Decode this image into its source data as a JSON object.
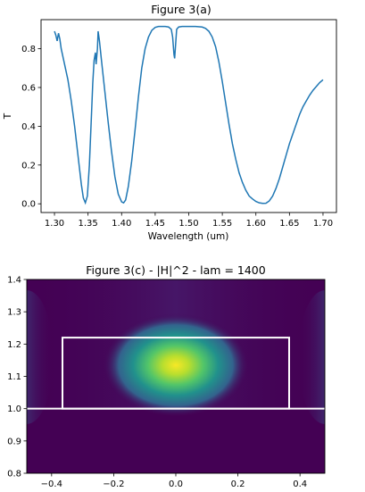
{
  "chart_data": [
    {
      "type": "line",
      "title": "Figure 3(a)",
      "xlabel": "Wavelength (um)",
      "ylabel": "T",
      "xlim": [
        1.28,
        1.72
      ],
      "ylim": [
        -0.045,
        0.95
      ],
      "x_ticks": [
        "1.30",
        "1.35",
        "1.40",
        "1.45",
        "1.50",
        "1.55",
        "1.60",
        "1.65",
        "1.70"
      ],
      "y_ticks": [
        "0.0",
        "0.2",
        "0.4",
        "0.6",
        "0.8"
      ],
      "series": [
        {
          "color": "#1f77b4",
          "points": [
            [
              1.3,
              0.89
            ],
            [
              1.302,
              0.87
            ],
            [
              1.304,
              0.84
            ],
            [
              1.306,
              0.88
            ],
            [
              1.308,
              0.85
            ],
            [
              1.31,
              0.8
            ],
            [
              1.315,
              0.72
            ],
            [
              1.32,
              0.64
            ],
            [
              1.325,
              0.53
            ],
            [
              1.33,
              0.4
            ],
            [
              1.335,
              0.25
            ],
            [
              1.34,
              0.1
            ],
            [
              1.343,
              0.03
            ],
            [
              1.346,
              0.005
            ],
            [
              1.349,
              0.04
            ],
            [
              1.352,
              0.2
            ],
            [
              1.355,
              0.45
            ],
            [
              1.357,
              0.62
            ],
            [
              1.359,
              0.74
            ],
            [
              1.361,
              0.78
            ],
            [
              1.362,
              0.72
            ],
            [
              1.364,
              0.8
            ],
            [
              1.365,
              0.89
            ],
            [
              1.367,
              0.84
            ],
            [
              1.37,
              0.74
            ],
            [
              1.375,
              0.58
            ],
            [
              1.38,
              0.42
            ],
            [
              1.385,
              0.27
            ],
            [
              1.39,
              0.14
            ],
            [
              1.395,
              0.05
            ],
            [
              1.4,
              0.01
            ],
            [
              1.403,
              0.005
            ],
            [
              1.406,
              0.02
            ],
            [
              1.41,
              0.09
            ],
            [
              1.415,
              0.22
            ],
            [
              1.42,
              0.38
            ],
            [
              1.425,
              0.55
            ],
            [
              1.43,
              0.7
            ],
            [
              1.435,
              0.8
            ],
            [
              1.44,
              0.86
            ],
            [
              1.445,
              0.895
            ],
            [
              1.45,
              0.91
            ],
            [
              1.455,
              0.915
            ],
            [
              1.46,
              0.915
            ],
            [
              1.465,
              0.915
            ],
            [
              1.47,
              0.912
            ],
            [
              1.474,
              0.9
            ],
            [
              1.476,
              0.86
            ],
            [
              1.478,
              0.77
            ],
            [
              1.479,
              0.75
            ],
            [
              1.48,
              0.8
            ],
            [
              1.482,
              0.9
            ],
            [
              1.485,
              0.912
            ],
            [
              1.49,
              0.915
            ],
            [
              1.5,
              0.915
            ],
            [
              1.51,
              0.915
            ],
            [
              1.52,
              0.912
            ],
            [
              1.525,
              0.905
            ],
            [
              1.53,
              0.89
            ],
            [
              1.535,
              0.86
            ],
            [
              1.54,
              0.81
            ],
            [
              1.545,
              0.73
            ],
            [
              1.55,
              0.63
            ],
            [
              1.555,
              0.52
            ],
            [
              1.56,
              0.41
            ],
            [
              1.565,
              0.31
            ],
            [
              1.57,
              0.23
            ],
            [
              1.575,
              0.16
            ],
            [
              1.58,
              0.11
            ],
            [
              1.585,
              0.07
            ],
            [
              1.59,
              0.04
            ],
            [
              1.595,
              0.025
            ],
            [
              1.6,
              0.012
            ],
            [
              1.605,
              0.005
            ],
            [
              1.61,
              0.002
            ],
            [
              1.615,
              0.003
            ],
            [
              1.62,
              0.015
            ],
            [
              1.625,
              0.04
            ],
            [
              1.63,
              0.08
            ],
            [
              1.635,
              0.13
            ],
            [
              1.64,
              0.19
            ],
            [
              1.645,
              0.25
            ],
            [
              1.65,
              0.31
            ],
            [
              1.655,
              0.36
            ],
            [
              1.66,
              0.41
            ],
            [
              1.665,
              0.46
            ],
            [
              1.67,
              0.5
            ],
            [
              1.675,
              0.53
            ],
            [
              1.68,
              0.56
            ],
            [
              1.685,
              0.585
            ],
            [
              1.69,
              0.605
            ],
            [
              1.695,
              0.625
            ],
            [
              1.7,
              0.64
            ]
          ]
        }
      ]
    },
    {
      "type": "heatmap",
      "title": "Figure 3(c) - |H|^2 - lam = 1400",
      "xlim": [
        -0.48,
        0.48
      ],
      "ylim": [
        0.8,
        1.4
      ],
      "x_ticks": [
        "−0.4",
        "−0.2",
        "0.0",
        "0.2",
        "0.4"
      ],
      "y_ticks": [
        "0.8",
        "0.9",
        "1.0",
        "1.1",
        "1.2",
        "1.3",
        "1.4"
      ],
      "colormap": "viridis",
      "field_peak": [
        0.0,
        1.13
      ],
      "overlay": {
        "color": "#ffffff",
        "rectangle": {
          "x": [
            -0.365,
            0.365
          ],
          "y": [
            1.0,
            1.22
          ]
        },
        "hline_y": 1.0
      }
    }
  ]
}
